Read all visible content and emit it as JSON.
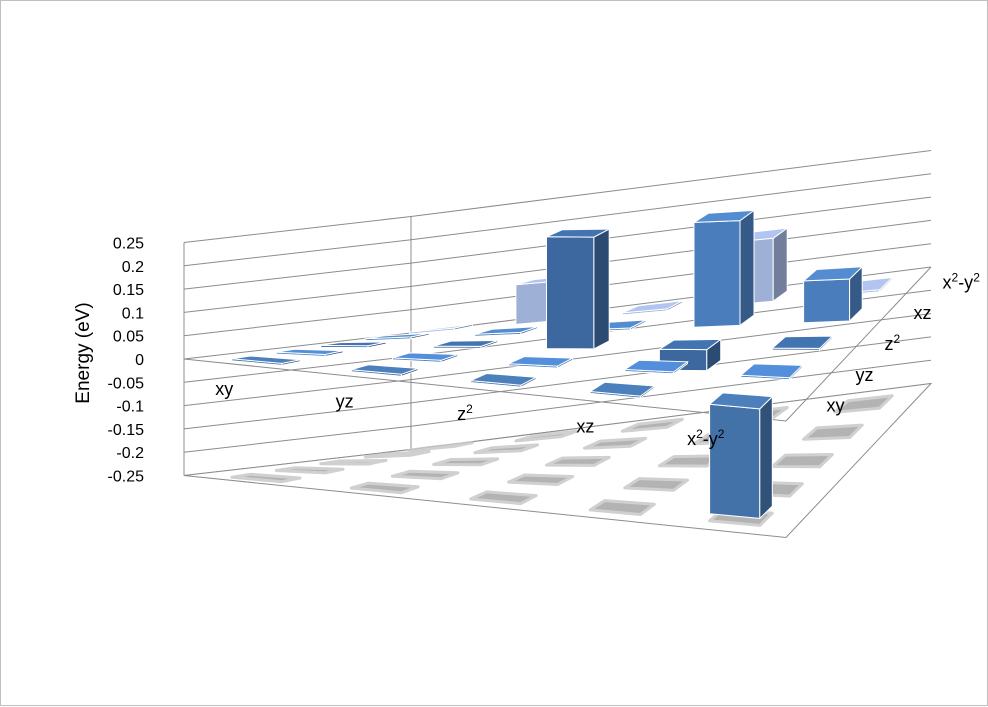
{
  "chart_data": {
    "type": "bar3d",
    "ylabel": "Energy (eV)",
    "ylim": [
      -0.25,
      0.25
    ],
    "y_ticks": [
      "0.25",
      "0.2",
      "0.15",
      "0.1",
      "0.05",
      "0",
      "-0.05",
      "-0.1",
      "-0.15",
      "-0.2",
      "-0.25"
    ],
    "x_categories": [
      "xy",
      "yz",
      "z2",
      "xz",
      "x2-y2"
    ],
    "x_category_labels": [
      {
        "base": "xy",
        "sup": []
      },
      {
        "base": "yz",
        "sup": []
      },
      {
        "base": "z",
        "sup": [
          "2"
        ]
      },
      {
        "base": "xz",
        "sup": []
      },
      {
        "base": "x",
        "sup": [
          "2"
        ],
        "mid": "-y",
        "sup2": "2"
      }
    ],
    "z_categories": [
      "xy",
      "yz",
      "z2",
      "xz",
      "x2-y2"
    ],
    "z_category_labels": [
      {
        "base": "xy"
      },
      {
        "base": "yz"
      },
      {
        "base": "z",
        "sup": "2"
      },
      {
        "base": "xz"
      },
      {
        "base": "x",
        "sup": "2",
        "mid": "-y",
        "sup2": "2"
      }
    ],
    "series": [
      {
        "values": [
          0.0,
          0.0,
          0.0,
          0.0,
          -0.235
        ],
        "color": "#4372a8"
      },
      {
        "values": [
          0.0,
          0.0,
          0.0,
          0.0,
          0.0
        ],
        "color": "#4b80c4"
      },
      {
        "values": [
          0.0,
          0.0,
          0.24,
          -0.045,
          0.0
        ],
        "color": "#3c689f"
      },
      {
        "values": [
          0.0,
          0.0,
          0.0,
          0.225,
          0.09
        ],
        "color": "#4a7dbb"
      },
      {
        "values": [
          0.0,
          0.085,
          0.0,
          0.135,
          0.0
        ],
        "color": "#9eb0d6"
      }
    ]
  }
}
